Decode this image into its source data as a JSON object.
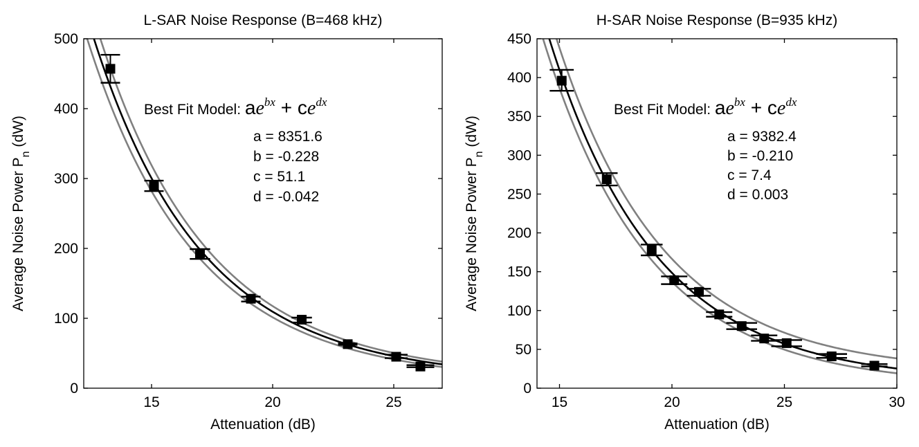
{
  "chart_data": [
    {
      "type": "scatter",
      "title": "L-SAR Noise Response (B=468 kHz)",
      "xlabel": "Attenuation (dB)",
      "ylabel_main": "Average Noise Power  P",
      "ylabel_sub": "n",
      "ylabel_unit": " (dW)",
      "xlim": [
        12.2,
        27
      ],
      "ylim": [
        0,
        500
      ],
      "xticks": [
        15,
        20,
        25
      ],
      "yticks": [
        0,
        100,
        200,
        300,
        400,
        500
      ],
      "model": {
        "label": "Best Fit Model:",
        "equation_terms": [
          "a",
          "e",
          "bx",
          "+",
          "c",
          "e",
          "dx"
        ],
        "params": [
          {
            "text": "a = 8351.6"
          },
          {
            "text": "b = -0.228"
          },
          {
            "text": "c = 51.1"
          },
          {
            "text": "d = -0.042"
          }
        ],
        "a": 8351.6,
        "b": -0.228,
        "c": 51.1,
        "d": -0.042
      },
      "bounds": {
        "lower_scale": 0.945,
        "upper_scale": 1.055,
        "lower_offset": -2,
        "upper_offset": 2
      },
      "points": [
        {
          "x": 13.3,
          "y": 457,
          "xerr": 0.15,
          "ylow": 437,
          "yhigh": 477
        },
        {
          "x": 15.1,
          "y": 290,
          "xerr": 0.2,
          "ylow": 282,
          "yhigh": 297
        },
        {
          "x": 17.0,
          "y": 192,
          "xerr": 0.25,
          "ylow": 185,
          "yhigh": 199
        },
        {
          "x": 19.1,
          "y": 128,
          "xerr": 0.2,
          "ylow": 124,
          "yhigh": 131
        },
        {
          "x": 21.2,
          "y": 98,
          "xerr": 0.25,
          "ylow": 94,
          "yhigh": 101
        },
        {
          "x": 23.1,
          "y": 63,
          "xerr": 0.1,
          "ylow": 62,
          "yhigh": 64
        },
        {
          "x": 25.1,
          "y": 45,
          "xerr": 0.3,
          "ylow": 43,
          "yhigh": 48
        },
        {
          "x": 26.1,
          "y": 31,
          "xerr": 0.4,
          "ylow": 30,
          "yhigh": 33
        }
      ]
    },
    {
      "type": "scatter",
      "title": "H-SAR Noise Response (B=935 kHz)",
      "xlabel": "Attenuation (dB)",
      "ylabel_main": "Average Noise Power  P",
      "ylabel_sub": "n",
      "ylabel_unit": " (dW)",
      "xlim": [
        14,
        30
      ],
      "ylim": [
        0,
        450
      ],
      "xticks": [
        15,
        20,
        25,
        30
      ],
      "yticks": [
        0,
        50,
        100,
        150,
        200,
        250,
        300,
        350,
        400,
        450
      ],
      "model": {
        "label": "Best Fit Model:",
        "equation_terms": [
          "a",
          "e",
          "bx",
          "+",
          "c",
          "e",
          "dx"
        ],
        "params": [
          {
            "text": "a = 9382.4"
          },
          {
            "text": "b = -0.210"
          },
          {
            "text": "c = 7.4"
          },
          {
            "text": "d = 0.003"
          }
        ],
        "a": 9382.4,
        "b": -0.21,
        "c": 7.4,
        "d": 0.003
      },
      "bounds": {
        "lower_scale": 0.955,
        "upper_scale": 1.04,
        "lower_offset": -5,
        "upper_offset": 12
      },
      "points": [
        {
          "x": 15.1,
          "y": 396,
          "xerr": 0.35,
          "ylow": 383,
          "yhigh": 410
        },
        {
          "x": 17.1,
          "y": 269,
          "xerr": 0.3,
          "ylow": 261,
          "yhigh": 277
        },
        {
          "x": 19.1,
          "y": 178,
          "xerr": 0.3,
          "ylow": 171,
          "yhigh": 185
        },
        {
          "x": 20.1,
          "y": 139,
          "xerr": 0.4,
          "ylow": 134,
          "yhigh": 144
        },
        {
          "x": 21.2,
          "y": 124,
          "xerr": 0.35,
          "ylow": 119,
          "yhigh": 128
        },
        {
          "x": 22.1,
          "y": 95,
          "xerr": 0.4,
          "ylow": 92,
          "yhigh": 98
        },
        {
          "x": 23.1,
          "y": 80,
          "xerr": 0.5,
          "ylow": 76,
          "yhigh": 84
        },
        {
          "x": 24.1,
          "y": 64,
          "xerr": 0.4,
          "ylow": 61,
          "yhigh": 68
        },
        {
          "x": 25.1,
          "y": 58,
          "xerr": 0.5,
          "ylow": 54,
          "yhigh": 62
        },
        {
          "x": 27.1,
          "y": 41,
          "xerr": 0.5,
          "ylow": 39,
          "yhigh": 44
        },
        {
          "x": 29.0,
          "y": 29,
          "xerr": 0.4,
          "ylow": 28,
          "yhigh": 31
        }
      ]
    }
  ]
}
